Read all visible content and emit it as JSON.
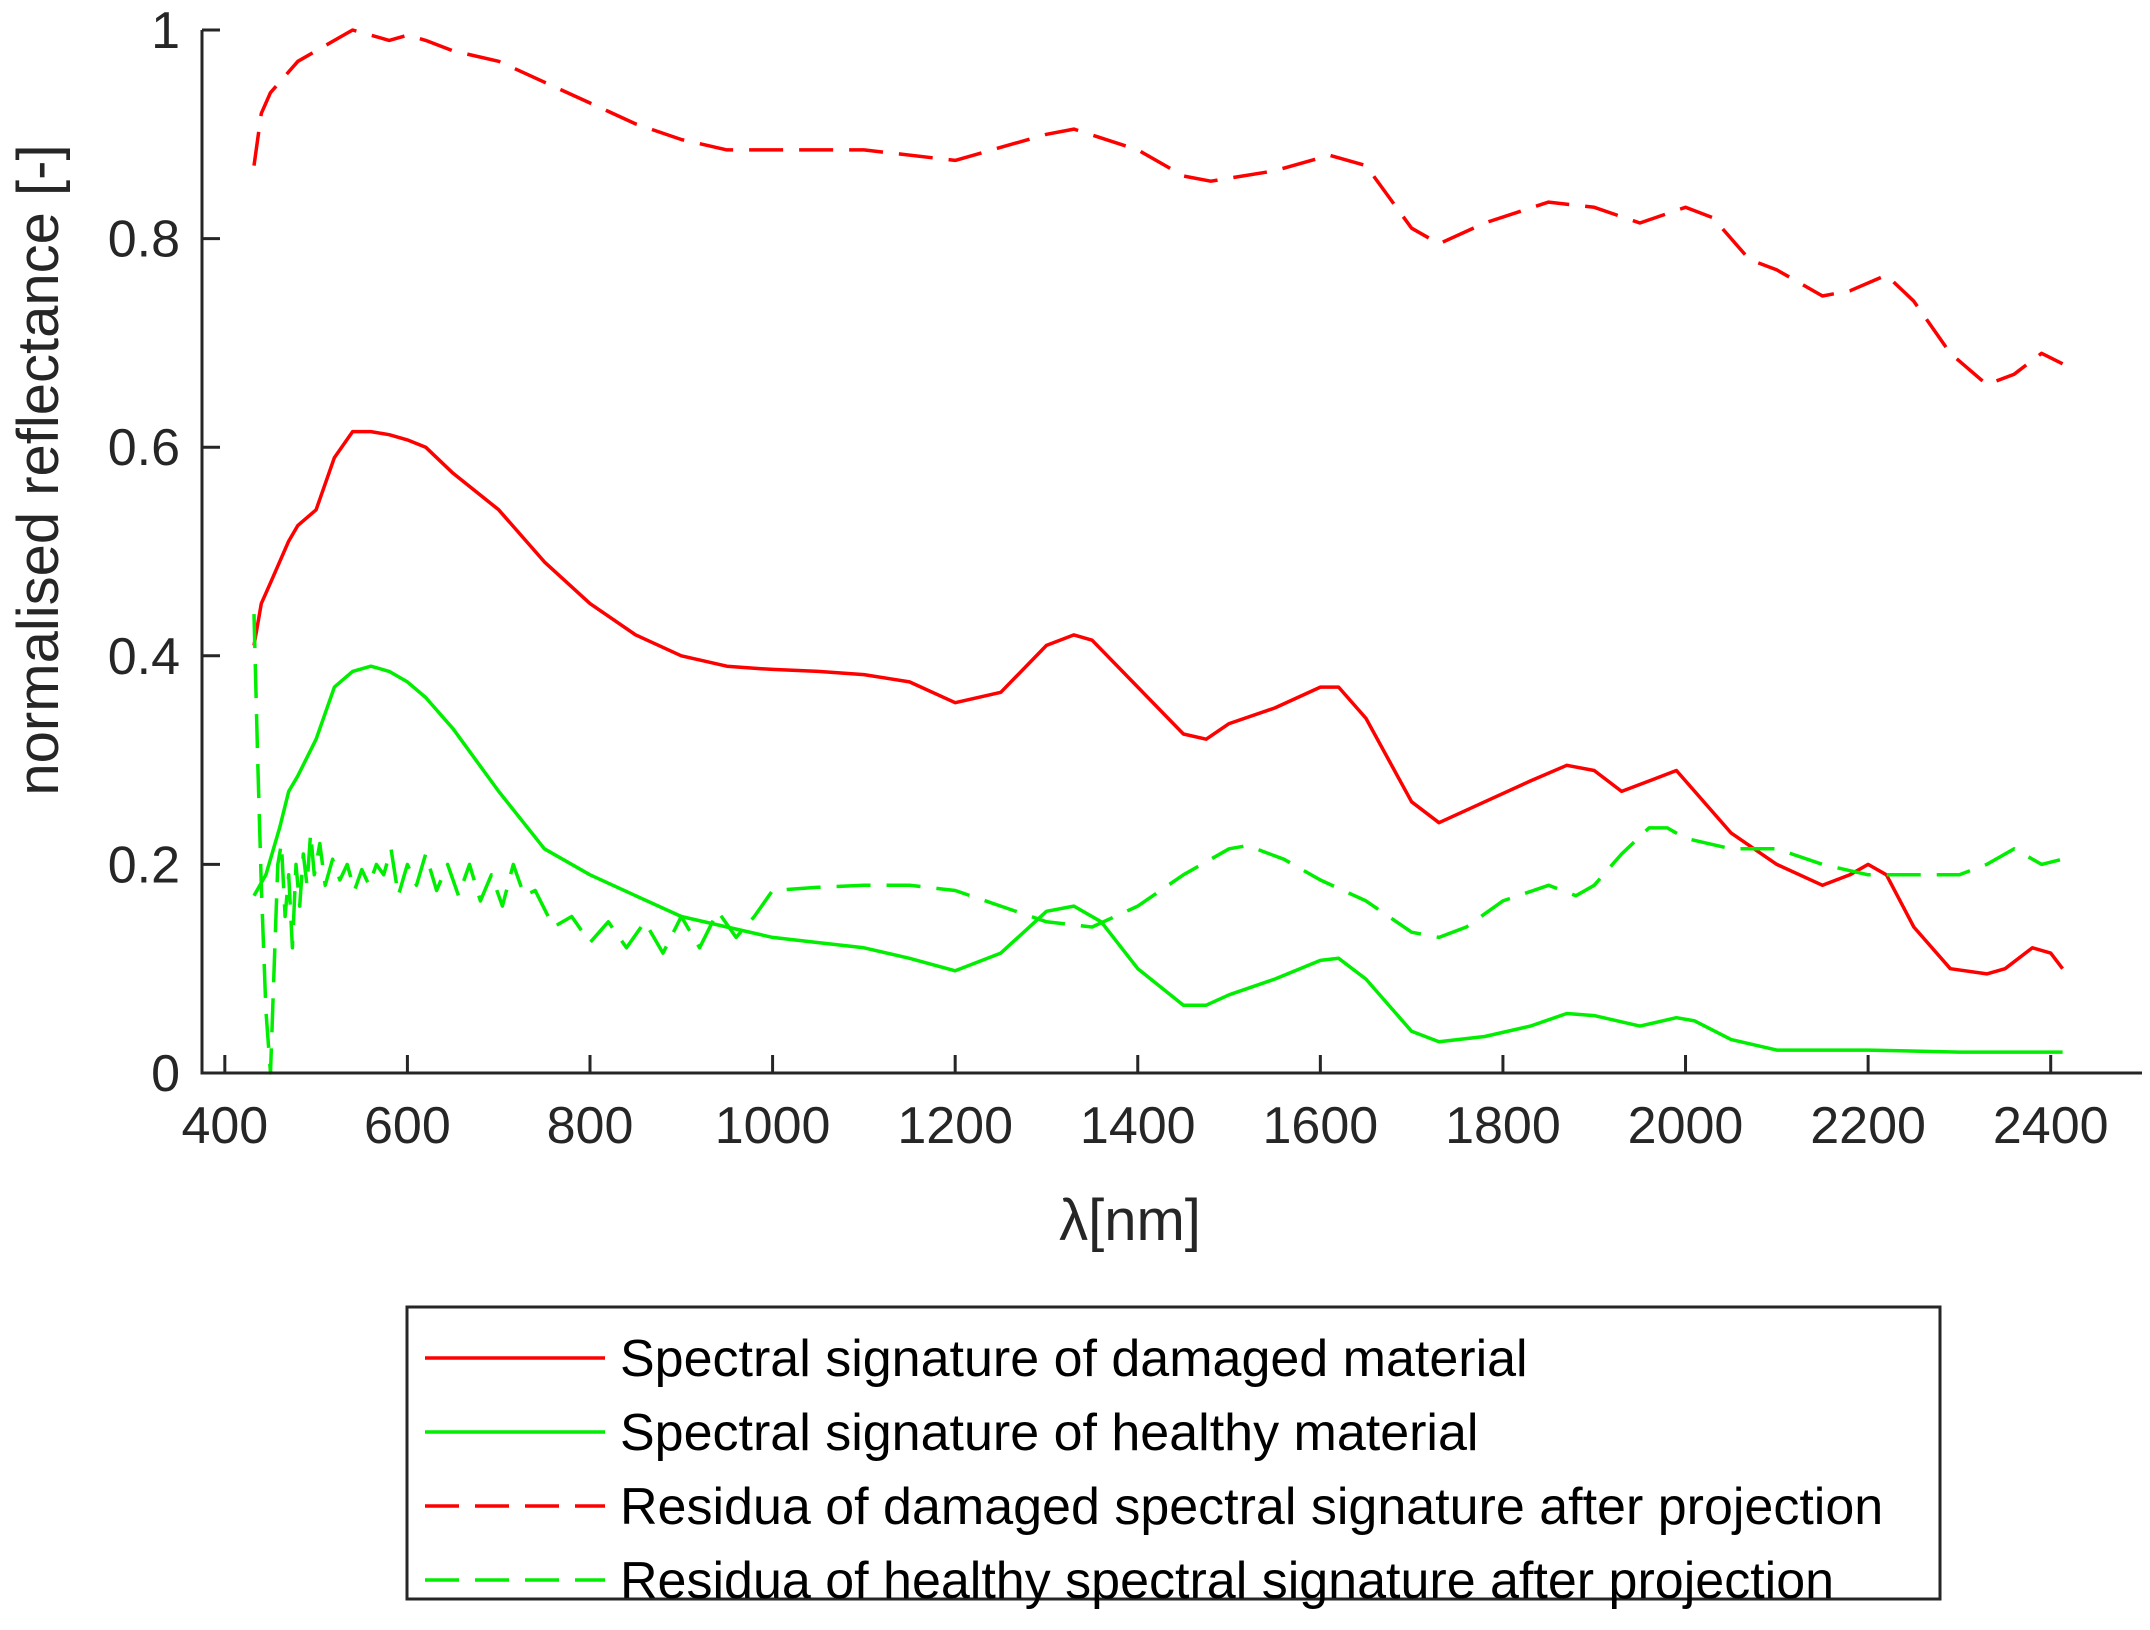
{
  "chart_data": {
    "type": "line",
    "title": "",
    "xlabel": "λ[nm]",
    "ylabel": "normalised reflectance [-]",
    "xlim": [
      375,
      2500
    ],
    "ylim": [
      0,
      1
    ],
    "x_ticks": [
      400,
      600,
      800,
      1000,
      1200,
      1400,
      1600,
      1800,
      2000,
      2200,
      2400
    ],
    "x_tick_labels": [
      "400",
      "600",
      "800",
      "1000",
      "1200",
      "1400",
      "1600",
      "1800",
      "2000",
      "2200",
      "2400"
    ],
    "y_ticks": [
      0,
      0.2,
      0.4,
      0.6,
      0.8,
      1
    ],
    "y_tick_labels": [
      "0",
      "0.2",
      "0.4",
      "0.6",
      "0.8",
      "1"
    ],
    "grid": false,
    "legend_position": "bottom-outside",
    "series": [
      {
        "name": "Spectral signature of damaged material",
        "color": "#ff0000",
        "style": "solid",
        "x": [
          432,
          440,
          450,
          460,
          470,
          480,
          500,
          520,
          540,
          560,
          580,
          600,
          620,
          650,
          700,
          750,
          800,
          850,
          900,
          950,
          980,
          1000,
          1050,
          1100,
          1150,
          1200,
          1250,
          1300,
          1330,
          1350,
          1400,
          1450,
          1475,
          1500,
          1550,
          1600,
          1620,
          1650,
          1700,
          1730,
          1780,
          1830,
          1870,
          1900,
          1930,
          1960,
          1990,
          2010,
          2050,
          2100,
          2150,
          2180,
          2200,
          2220,
          2250,
          2290,
          2330,
          2350,
          2380,
          2400,
          2413
        ],
        "y": [
          0.41,
          0.45,
          0.47,
          0.49,
          0.51,
          0.525,
          0.54,
          0.59,
          0.615,
          0.615,
          0.612,
          0.607,
          0.6,
          0.575,
          0.54,
          0.49,
          0.45,
          0.42,
          0.4,
          0.39,
          0.388,
          0.387,
          0.385,
          0.382,
          0.375,
          0.355,
          0.365,
          0.41,
          0.42,
          0.415,
          0.37,
          0.325,
          0.32,
          0.335,
          0.35,
          0.37,
          0.37,
          0.34,
          0.26,
          0.24,
          0.26,
          0.28,
          0.295,
          0.29,
          0.27,
          0.28,
          0.29,
          0.27,
          0.23,
          0.2,
          0.18,
          0.19,
          0.2,
          0.19,
          0.14,
          0.1,
          0.095,
          0.1,
          0.12,
          0.115,
          0.1
        ]
      },
      {
        "name": "Spectral signature of healthy material",
        "color": "#00ee00",
        "style": "solid",
        "x": [
          432,
          445,
          460,
          470,
          480,
          500,
          520,
          540,
          560,
          580,
          600,
          620,
          650,
          700,
          750,
          800,
          850,
          900,
          950,
          1000,
          1050,
          1100,
          1150,
          1200,
          1250,
          1300,
          1330,
          1360,
          1400,
          1450,
          1475,
          1500,
          1550,
          1600,
          1620,
          1650,
          1700,
          1730,
          1780,
          1830,
          1870,
          1900,
          1950,
          1990,
          2010,
          2050,
          2100,
          2200,
          2300,
          2413
        ],
        "y": [
          0.17,
          0.19,
          0.235,
          0.27,
          0.285,
          0.32,
          0.37,
          0.385,
          0.39,
          0.385,
          0.375,
          0.36,
          0.33,
          0.27,
          0.215,
          0.19,
          0.17,
          0.15,
          0.14,
          0.13,
          0.125,
          0.12,
          0.11,
          0.098,
          0.115,
          0.155,
          0.16,
          0.145,
          0.1,
          0.065,
          0.065,
          0.075,
          0.09,
          0.108,
          0.11,
          0.09,
          0.04,
          0.03,
          0.035,
          0.045,
          0.057,
          0.055,
          0.045,
          0.053,
          0.05,
          0.032,
          0.022,
          0.022,
          0.02,
          0.02
        ]
      },
      {
        "name": "Residua of damaged spectral signature after projection",
        "color": "#ff0000",
        "style": "dashed",
        "x": [
          432,
          440,
          450,
          460,
          480,
          500,
          520,
          540,
          560,
          580,
          600,
          620,
          650,
          700,
          750,
          800,
          850,
          900,
          950,
          1000,
          1100,
          1200,
          1300,
          1330,
          1400,
          1450,
          1480,
          1550,
          1610,
          1650,
          1700,
          1730,
          1780,
          1850,
          1900,
          1950,
          2000,
          2030,
          2070,
          2100,
          2150,
          2180,
          2220,
          2250,
          2290,
          2330,
          2360,
          2390,
          2413
        ],
        "y": [
          0.87,
          0.92,
          0.94,
          0.95,
          0.97,
          0.98,
          0.99,
          1.0,
          0.995,
          0.99,
          0.995,
          0.99,
          0.98,
          0.97,
          0.95,
          0.93,
          0.91,
          0.895,
          0.885,
          0.885,
          0.885,
          0.875,
          0.9,
          0.905,
          0.885,
          0.86,
          0.855,
          0.865,
          0.88,
          0.87,
          0.81,
          0.795,
          0.815,
          0.835,
          0.83,
          0.815,
          0.83,
          0.82,
          0.78,
          0.77,
          0.745,
          0.75,
          0.765,
          0.74,
          0.69,
          0.66,
          0.67,
          0.69,
          0.68
        ]
      },
      {
        "name": "Residua of healthy spectral signature after projection",
        "color": "#00ee00",
        "style": "dashed",
        "x": [
          432,
          436,
          440,
          445,
          450,
          454,
          458,
          462,
          466,
          470,
          474,
          478,
          482,
          486,
          490,
          494,
          498,
          504,
          510,
          518,
          526,
          534,
          542,
          550,
          558,
          566,
          574,
          582,
          590,
          600,
          610,
          620,
          632,
          644,
          656,
          668,
          680,
          692,
          704,
          716,
          728,
          740,
          760,
          780,
          800,
          820,
          840,
          860,
          880,
          900,
          920,
          940,
          960,
          980,
          1000,
          1050,
          1100,
          1150,
          1200,
          1250,
          1300,
          1350,
          1400,
          1450,
          1500,
          1520,
          1560,
          1600,
          1650,
          1700,
          1730,
          1760,
          1800,
          1850,
          1880,
          1900,
          1930,
          1960,
          1980,
          2000,
          2050,
          2100,
          2150,
          2200,
          2250,
          2300,
          2330,
          2360,
          2390,
          2413
        ],
        "y": [
          0.44,
          0.3,
          0.18,
          0.06,
          0.0,
          0.1,
          0.2,
          0.22,
          0.15,
          0.19,
          0.12,
          0.2,
          0.16,
          0.21,
          0.18,
          0.23,
          0.19,
          0.22,
          0.18,
          0.205,
          0.185,
          0.2,
          0.175,
          0.195,
          0.18,
          0.2,
          0.19,
          0.215,
          0.17,
          0.2,
          0.18,
          0.21,
          0.175,
          0.2,
          0.17,
          0.2,
          0.165,
          0.19,
          0.16,
          0.2,
          0.17,
          0.175,
          0.14,
          0.15,
          0.125,
          0.145,
          0.12,
          0.145,
          0.115,
          0.15,
          0.12,
          0.155,
          0.13,
          0.15,
          0.175,
          0.178,
          0.18,
          0.18,
          0.175,
          0.16,
          0.145,
          0.14,
          0.16,
          0.19,
          0.215,
          0.218,
          0.205,
          0.185,
          0.165,
          0.135,
          0.13,
          0.14,
          0.165,
          0.18,
          0.17,
          0.18,
          0.21,
          0.235,
          0.235,
          0.225,
          0.215,
          0.215,
          0.2,
          0.19,
          0.19,
          0.19,
          0.2,
          0.215,
          0.2,
          0.205
        ]
      }
    ]
  }
}
